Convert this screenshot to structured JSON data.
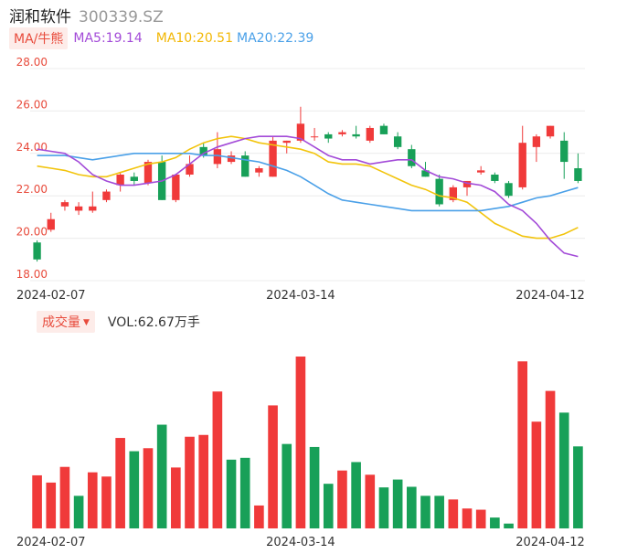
{
  "header": {
    "name": "润和软件",
    "code": "300339.SZ"
  },
  "ma_legend": {
    "tag": "MA/牛熊",
    "ma5": "MA5:19.14",
    "ma10": "MA10:20.51",
    "ma20": "MA20:22.39"
  },
  "volume_legend": {
    "tag": "成交量",
    "value": "VOL:62.67万手"
  },
  "colors": {
    "up": "#f03a3a",
    "down": "#18a058",
    "ma5": "#a34bd8",
    "ma10": "#f2c40c",
    "ma20": "#4aa0e8",
    "grid": "#ececec",
    "axis_label": "#e84b3c"
  },
  "chart_data": [
    {
      "type": "candlestick",
      "title": "",
      "y_ticks": [
        "28.00",
        "26.00",
        "24.00",
        "22.00",
        "20.00",
        "18.00"
      ],
      "ylim": [
        18,
        28
      ],
      "x_ticks": [
        {
          "label": "2024-02-07",
          "index": 1
        },
        {
          "label": "2024-03-14",
          "index": 19
        },
        {
          "label": "2024-04-12",
          "index": 37
        }
      ],
      "candles": [
        {
          "o": 19.8,
          "h": 19.9,
          "l": 18.9,
          "c": 19.0
        },
        {
          "o": 20.4,
          "h": 21.2,
          "l": 20.3,
          "c": 20.9
        },
        {
          "o": 21.5,
          "h": 21.8,
          "l": 21.3,
          "c": 21.7
        },
        {
          "o": 21.3,
          "h": 21.7,
          "l": 21.1,
          "c": 21.5
        },
        {
          "o": 21.3,
          "h": 22.2,
          "l": 21.2,
          "c": 21.5
        },
        {
          "o": 21.8,
          "h": 22.3,
          "l": 21.7,
          "c": 22.2
        },
        {
          "o": 22.5,
          "h": 23.1,
          "l": 22.2,
          "c": 23.0
        },
        {
          "o": 22.9,
          "h": 23.1,
          "l": 22.5,
          "c": 22.7
        },
        {
          "o": 22.6,
          "h": 23.7,
          "l": 22.5,
          "c": 23.6
        },
        {
          "o": 23.6,
          "h": 23.9,
          "l": 21.8,
          "c": 21.8
        },
        {
          "o": 21.8,
          "h": 23.0,
          "l": 21.7,
          "c": 23.0
        },
        {
          "o": 23.0,
          "h": 23.9,
          "l": 22.9,
          "c": 23.5
        },
        {
          "o": 24.3,
          "h": 24.5,
          "l": 23.8,
          "c": 23.9
        },
        {
          "o": 23.5,
          "h": 25.0,
          "l": 23.3,
          "c": 24.2
        },
        {
          "o": 23.6,
          "h": 24.1,
          "l": 23.5,
          "c": 23.9
        },
        {
          "o": 23.9,
          "h": 24.1,
          "l": 22.9,
          "c": 22.9
        },
        {
          "o": 23.1,
          "h": 23.4,
          "l": 22.9,
          "c": 23.3
        },
        {
          "o": 22.9,
          "h": 24.8,
          "l": 22.9,
          "c": 24.6
        },
        {
          "o": 24.5,
          "h": 24.6,
          "l": 24.0,
          "c": 24.6
        },
        {
          "o": 24.6,
          "h": 26.2,
          "l": 24.5,
          "c": 25.4
        },
        {
          "o": 24.8,
          "h": 25.2,
          "l": 24.6,
          "c": 24.8
        },
        {
          "o": 24.9,
          "h": 25.0,
          "l": 24.5,
          "c": 24.7
        },
        {
          "o": 24.9,
          "h": 25.1,
          "l": 24.8,
          "c": 25.0
        },
        {
          "o": 24.9,
          "h": 25.3,
          "l": 24.7,
          "c": 24.8
        },
        {
          "o": 24.6,
          "h": 25.3,
          "l": 24.5,
          "c": 25.2
        },
        {
          "o": 25.3,
          "h": 25.4,
          "l": 24.9,
          "c": 24.9
        },
        {
          "o": 24.8,
          "h": 25.0,
          "l": 24.2,
          "c": 24.3
        },
        {
          "o": 24.2,
          "h": 24.4,
          "l": 23.3,
          "c": 23.4
        },
        {
          "o": 23.2,
          "h": 23.6,
          "l": 22.9,
          "c": 22.9
        },
        {
          "o": 22.8,
          "h": 23.0,
          "l": 21.5,
          "c": 21.6
        },
        {
          "o": 21.8,
          "h": 22.5,
          "l": 21.7,
          "c": 22.4
        },
        {
          "o": 22.4,
          "h": 22.7,
          "l": 22.0,
          "c": 22.7
        },
        {
          "o": 23.1,
          "h": 23.4,
          "l": 23.0,
          "c": 23.2
        },
        {
          "o": 23.0,
          "h": 23.1,
          "l": 22.6,
          "c": 22.7
        },
        {
          "o": 22.6,
          "h": 22.7,
          "l": 21.9,
          "c": 22.0
        },
        {
          "o": 22.4,
          "h": 25.3,
          "l": 22.3,
          "c": 24.5
        },
        {
          "o": 24.3,
          "h": 24.9,
          "l": 23.6,
          "c": 24.8
        },
        {
          "o": 24.8,
          "h": 25.3,
          "l": 24.7,
          "c": 25.3
        },
        {
          "o": 24.6,
          "h": 25.0,
          "l": 22.8,
          "c": 23.6
        },
        {
          "o": 23.3,
          "h": 24.0,
          "l": 22.6,
          "c": 22.7
        }
      ],
      "ma5": [
        24.2,
        24.1,
        24.0,
        23.6,
        23.0,
        22.7,
        22.5,
        22.5,
        22.6,
        22.7,
        23.0,
        23.5,
        24.0,
        24.3,
        24.5,
        24.7,
        24.8,
        24.8,
        24.8,
        24.7,
        24.3,
        23.9,
        23.7,
        23.7,
        23.5,
        23.6,
        23.7,
        23.7,
        23.2,
        22.9,
        22.8,
        22.6,
        22.5,
        22.2,
        21.6,
        21.3,
        20.7,
        19.9,
        19.3,
        19.14
      ],
      "ma10": [
        23.4,
        23.3,
        23.2,
        23.0,
        22.9,
        22.9,
        23.1,
        23.3,
        23.5,
        23.6,
        23.8,
        24.2,
        24.5,
        24.7,
        24.8,
        24.7,
        24.5,
        24.4,
        24.3,
        24.2,
        24.0,
        23.6,
        23.5,
        23.5,
        23.4,
        23.1,
        22.8,
        22.5,
        22.3,
        22.0,
        21.9,
        21.7,
        21.2,
        20.7,
        20.4,
        20.1,
        20.0,
        20.0,
        20.2,
        20.51
      ],
      "ma20": [
        23.9,
        23.9,
        23.9,
        23.8,
        23.7,
        23.8,
        23.9,
        24.0,
        24.0,
        24.0,
        24.0,
        24.0,
        23.9,
        23.9,
        23.8,
        23.7,
        23.6,
        23.4,
        23.2,
        22.9,
        22.5,
        22.1,
        21.8,
        21.7,
        21.6,
        21.5,
        21.4,
        21.3,
        21.3,
        21.3,
        21.3,
        21.3,
        21.3,
        21.4,
        21.5,
        21.7,
        21.9,
        22.0,
        22.2,
        22.39
      ]
    },
    {
      "type": "bar",
      "title": "",
      "x_ticks": [
        {
          "label": "2024-02-07",
          "index": 1
        },
        {
          "label": "2024-03-14",
          "index": 19
        },
        {
          "label": "2024-04-12",
          "index": 37
        }
      ],
      "values": [
        88,
        76,
        102,
        54,
        93,
        86,
        150,
        128,
        133,
        172,
        101,
        152,
        155,
        227,
        114,
        117,
        38,
        204,
        140,
        285,
        135,
        74,
        96,
        110,
        89,
        68,
        81,
        69,
        54,
        54,
        48,
        33,
        31,
        18,
        8,
        277,
        177,
        228,
        192,
        136
      ],
      "directions": [
        "up",
        "up",
        "up",
        "down",
        "up",
        "up",
        "up",
        "down",
        "up",
        "down",
        "up",
        "up",
        "up",
        "up",
        "down",
        "down",
        "up",
        "up",
        "down",
        "up",
        "down",
        "down",
        "up",
        "down",
        "up",
        "down",
        "down",
        "down",
        "down",
        "down",
        "up",
        "up",
        "up",
        "down",
        "down",
        "up",
        "up",
        "up",
        "down",
        "down"
      ]
    }
  ]
}
